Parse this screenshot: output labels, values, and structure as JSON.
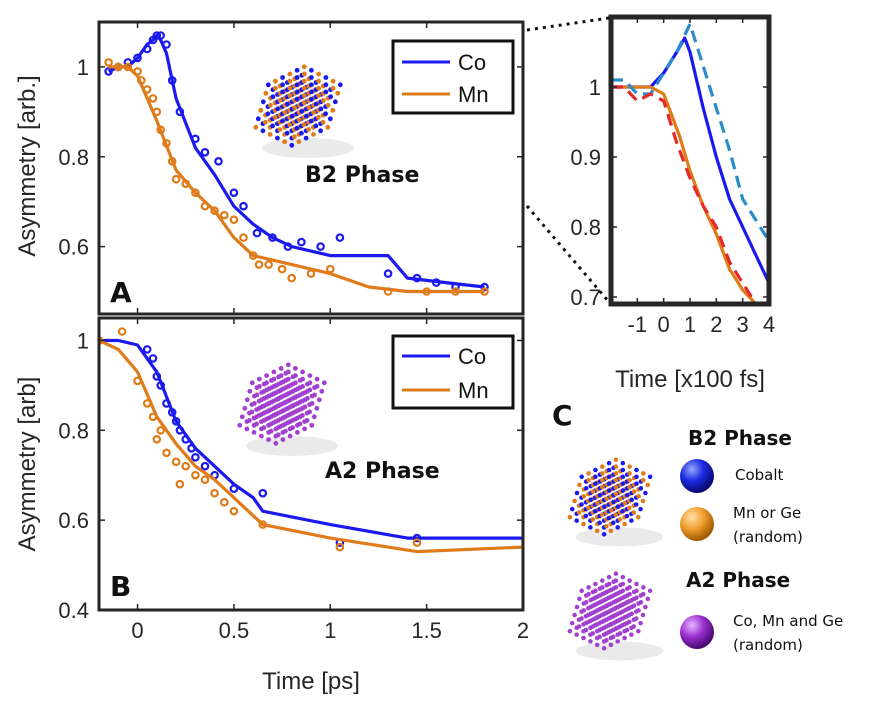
{
  "colors": {
    "co": "#1a1af0",
    "mn": "#e07b1a",
    "co_inset_fit": "#2a8acb",
    "mn_inset_fit": "#e62a2a",
    "a2_atom": "#a240d0"
  },
  "labels": {
    "panel_a": "A",
    "panel_b": "B",
    "panel_c": "C",
    "phase_b2": "B2 Phase",
    "phase_a2": "A2 Phase",
    "ylabel_a": "Asymmetry [arb.]",
    "ylabel_b": "Asymmetry [arb]",
    "xlabel_main": "Time [ps]",
    "xlabel_inset": "Time [x100 fs]",
    "legend_co": "Co",
    "legend_mn": "Mn"
  },
  "key": {
    "b2_title": "B2 Phase",
    "cobalt": "Cobalt",
    "mn_ge_line1": "Mn or Ge",
    "mn_ge_line2": "(random)",
    "a2_title": "A2 Phase",
    "comnge_line1": "Co, Mn and Ge",
    "comnge_line2": "(random)"
  },
  "chart_data": [
    {
      "panel": "A",
      "type": "line",
      "xlim": [
        -0.2,
        2.0
      ],
      "ylim": [
        0.45,
        1.1
      ],
      "xticks": [
        0,
        0.5,
        1,
        1.5,
        2
      ],
      "yticks": [
        0.6,
        0.8,
        1
      ],
      "ytick_labels": [
        "0.6",
        "0.8",
        "1"
      ],
      "legend": "top-right",
      "series": [
        {
          "name": "Co",
          "color": "#1a1af0",
          "x": [
            -0.15,
            -0.1,
            -0.05,
            0.0,
            0.05,
            0.08,
            0.1,
            0.12,
            0.15,
            0.2,
            0.3,
            0.4,
            0.5,
            0.6,
            0.7,
            0.8,
            0.9,
            1.0,
            1.3,
            1.4,
            1.6,
            1.8
          ],
          "y": [
            0.99,
            1.0,
            1.0,
            1.02,
            1.05,
            1.06,
            1.07,
            1.06,
            1.03,
            0.93,
            0.82,
            0.76,
            0.69,
            0.65,
            0.62,
            0.6,
            0.59,
            0.58,
            0.58,
            0.53,
            0.52,
            0.51
          ],
          "markers_x": [
            -0.15,
            -0.1,
            -0.05,
            0.0,
            0.05,
            0.08,
            0.1,
            0.12,
            0.15,
            0.18,
            0.22,
            0.3,
            0.35,
            0.42,
            0.5,
            0.55,
            0.62,
            0.7,
            0.78,
            0.85,
            0.95,
            1.05,
            1.3,
            1.45,
            1.55,
            1.65,
            1.8
          ],
          "markers_y": [
            0.99,
            1.0,
            1.01,
            1.02,
            1.04,
            1.06,
            1.07,
            1.07,
            1.05,
            0.97,
            0.9,
            0.84,
            0.81,
            0.79,
            0.72,
            0.69,
            0.63,
            0.62,
            0.6,
            0.61,
            0.6,
            0.62,
            0.54,
            0.53,
            0.52,
            0.51,
            0.51
          ]
        },
        {
          "name": "Mn",
          "color": "#e07b1a",
          "x": [
            -0.15,
            -0.05,
            0.0,
            0.05,
            0.1,
            0.2,
            0.3,
            0.4,
            0.5,
            0.6,
            0.7,
            0.8,
            0.9,
            1.0,
            1.2,
            1.4,
            1.6,
            1.8
          ],
          "y": [
            1.0,
            1.0,
            0.98,
            0.93,
            0.88,
            0.77,
            0.72,
            0.68,
            0.62,
            0.58,
            0.57,
            0.56,
            0.55,
            0.54,
            0.51,
            0.5,
            0.5,
            0.5
          ],
          "markers_x": [
            -0.15,
            -0.1,
            -0.05,
            0.0,
            0.02,
            0.05,
            0.08,
            0.1,
            0.12,
            0.15,
            0.18,
            0.2,
            0.25,
            0.3,
            0.35,
            0.4,
            0.45,
            0.5,
            0.55,
            0.6,
            0.63,
            0.68,
            0.75,
            0.8,
            0.9,
            1.0,
            1.3,
            1.5,
            1.65,
            1.8
          ],
          "markers_y": [
            1.01,
            1.0,
            1.0,
            0.99,
            0.97,
            0.95,
            0.93,
            0.9,
            0.86,
            0.83,
            0.79,
            0.75,
            0.74,
            0.72,
            0.69,
            0.68,
            0.67,
            0.66,
            0.62,
            0.58,
            0.56,
            0.56,
            0.55,
            0.53,
            0.54,
            0.55,
            0.5,
            0.5,
            0.5,
            0.5
          ]
        }
      ]
    },
    {
      "panel": "B",
      "type": "line",
      "xlabel": "Time [ps]",
      "xlim": [
        -0.2,
        2.0
      ],
      "ylim": [
        0.4,
        1.05
      ],
      "xticks": [
        0,
        0.5,
        1,
        1.5,
        2
      ],
      "xtick_labels": [
        "0",
        "0.5",
        "1",
        "1.5",
        "2"
      ],
      "yticks": [
        0.4,
        0.6,
        0.8,
        1
      ],
      "ytick_labels": [
        "0.4",
        "0.6",
        "0.8",
        "1"
      ],
      "legend": "top-right",
      "series": [
        {
          "name": "Co",
          "color": "#1a1af0",
          "x": [
            -0.2,
            -0.1,
            0.0,
            0.1,
            0.2,
            0.3,
            0.4,
            0.5,
            0.6,
            0.65,
            1.0,
            1.4,
            2.0
          ],
          "y": [
            1.0,
            1.0,
            0.99,
            0.93,
            0.82,
            0.76,
            0.72,
            0.68,
            0.65,
            0.62,
            0.59,
            0.56,
            0.56
          ],
          "markers_x": [
            -0.2,
            0.05,
            0.08,
            0.1,
            0.12,
            0.15,
            0.18,
            0.2,
            0.22,
            0.25,
            0.28,
            0.3,
            0.35,
            0.4,
            0.5,
            0.65,
            1.05,
            1.45
          ],
          "markers_y": [
            1.0,
            0.98,
            0.96,
            0.92,
            0.9,
            0.86,
            0.84,
            0.82,
            0.8,
            0.78,
            0.76,
            0.74,
            0.72,
            0.7,
            0.67,
            0.66,
            0.55,
            0.56
          ]
        },
        {
          "name": "Mn",
          "color": "#e07b1a",
          "x": [
            -0.2,
            -0.1,
            0.0,
            0.05,
            0.1,
            0.2,
            0.3,
            0.4,
            0.5,
            0.6,
            0.65,
            1.0,
            1.45,
            2.0
          ],
          "y": [
            1.0,
            0.98,
            0.93,
            0.88,
            0.83,
            0.77,
            0.72,
            0.69,
            0.65,
            0.61,
            0.59,
            0.56,
            0.53,
            0.54
          ],
          "markers_x": [
            -0.2,
            -0.08,
            0.0,
            0.05,
            0.08,
            0.1,
            0.12,
            0.15,
            0.2,
            0.22,
            0.25,
            0.3,
            0.35,
            0.4,
            0.45,
            0.5,
            0.65,
            1.05,
            1.45
          ],
          "markers_y": [
            1.0,
            1.02,
            0.91,
            0.86,
            0.83,
            0.78,
            0.8,
            0.75,
            0.73,
            0.68,
            0.72,
            0.7,
            0.69,
            0.66,
            0.64,
            0.62,
            0.59,
            0.54,
            0.55
          ]
        }
      ]
    },
    {
      "panel": "inset",
      "type": "line",
      "xlabel": "Time [x100 fs]",
      "xlim": [
        -2,
        4
      ],
      "ylim": [
        0.69,
        1.1
      ],
      "xticks": [
        -1,
        0,
        1,
        2,
        3,
        4
      ],
      "xtick_labels": [
        "-1",
        "0",
        "1",
        "2",
        "3",
        "4"
      ],
      "yticks": [
        0.7,
        0.8,
        0.9,
        1
      ],
      "ytick_labels": [
        "0.7",
        "0.8",
        "0.9",
        "1"
      ],
      "series": [
        {
          "name": "Co",
          "style": "solid",
          "color": "#1a1af0",
          "x": [
            -2,
            -1.5,
            -1,
            -0.5,
            0,
            0.5,
            0.8,
            1.0,
            1.5,
            2.0,
            2.5,
            3.0,
            3.5,
            4.0
          ],
          "y": [
            1.0,
            1.0,
            1.0,
            1.0,
            1.02,
            1.05,
            1.07,
            1.05,
            0.97,
            0.9,
            0.84,
            0.8,
            0.76,
            0.72
          ]
        },
        {
          "name": "Mn",
          "style": "solid",
          "color": "#e07b1a",
          "x": [
            -2,
            -1.5,
            -1,
            -0.5,
            0,
            0.3,
            0.6,
            1.0,
            1.5,
            2.0,
            2.5,
            3.0,
            3.5
          ],
          "y": [
            1.0,
            1.0,
            1.0,
            1.0,
            0.99,
            0.96,
            0.93,
            0.88,
            0.83,
            0.79,
            0.74,
            0.71,
            0.69
          ]
        },
        {
          "style": "dashed",
          "color": "#2a8acb",
          "x": [
            -2,
            -1.5,
            -1,
            -0.5,
            0,
            0.5,
            1.0,
            1.5,
            2.0,
            2.5,
            3.0,
            3.5,
            4.0
          ],
          "y": [
            1.01,
            1.01,
            0.99,
            0.99,
            1.02,
            1.05,
            1.09,
            1.03,
            0.97,
            0.91,
            0.84,
            0.81,
            0.78
          ]
        },
        {
          "style": "dashed",
          "color": "#e62a2a",
          "x": [
            -2,
            -1.5,
            -1,
            -0.5,
            0,
            0.5,
            1.0,
            1.5,
            2.0,
            2.5,
            3.0,
            3.5
          ],
          "y": [
            1.0,
            1.0,
            0.98,
            0.99,
            0.98,
            0.92,
            0.87,
            0.83,
            0.8,
            0.75,
            0.72,
            0.69
          ]
        }
      ]
    }
  ]
}
